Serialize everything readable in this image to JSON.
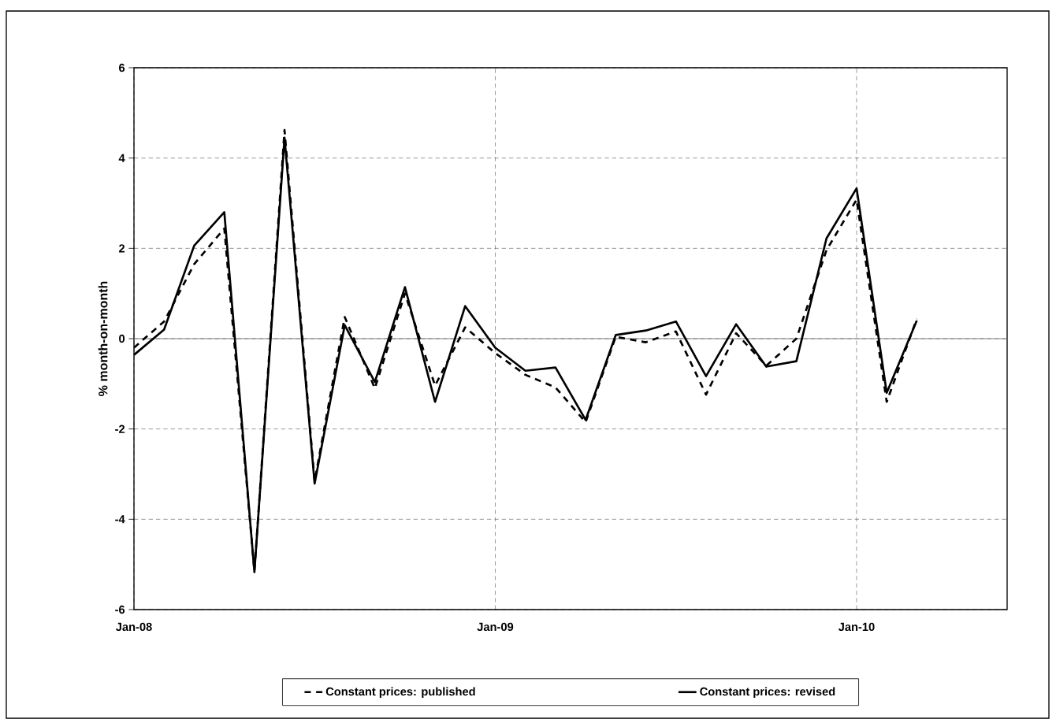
{
  "chart_data": {
    "type": "line",
    "ylabel": "% month-on-month",
    "x": [
      "2008-01",
      "2008-02",
      "2008-03",
      "2008-04",
      "2008-05",
      "2008-06",
      "2008-07",
      "2008-08",
      "2008-09",
      "2008-10",
      "2008-11",
      "2008-12",
      "2009-01",
      "2009-02",
      "2009-03",
      "2009-04",
      "2009-05",
      "2009-06",
      "2009-07",
      "2009-08",
      "2009-09",
      "2009-10",
      "2009-11",
      "2009-12",
      "2010-01",
      "2010-02",
      "2010-03"
    ],
    "series": [
      {
        "name": "Constant prices: published",
        "color": "#000000",
        "line_style": "dashed",
        "values": [
          -0.2,
          0.38,
          1.65,
          2.44,
          -5.15,
          4.62,
          -3.15,
          0.48,
          -1.1,
          1.0,
          -1.04,
          0.25,
          -0.32,
          -0.8,
          -1.08,
          -1.85,
          0.04,
          -0.08,
          0.16,
          -1.24,
          0.12,
          -0.6,
          0.0,
          1.96,
          3.08,
          -1.4,
          0.44
        ]
      },
      {
        "name": "Constant prices: revised",
        "color": "#000000",
        "line_style": "solid",
        "values": [
          -0.36,
          0.2,
          2.06,
          2.8,
          -5.17,
          4.45,
          -3.21,
          0.3,
          -0.96,
          1.14,
          -1.4,
          0.72,
          -0.2,
          -0.71,
          -0.64,
          -1.8,
          0.08,
          0.18,
          0.38,
          -0.83,
          0.32,
          -0.62,
          -0.5,
          2.22,
          3.33,
          -1.2,
          0.4
        ]
      }
    ],
    "xlim": [
      "2008-01",
      "2010-06"
    ],
    "xticks": [
      {
        "value": "2008-01",
        "label": "Jan-08"
      },
      {
        "value": "2009-01",
        "label": "Jan-09"
      },
      {
        "value": "2010-01",
        "label": "Jan-10"
      }
    ],
    "ylim": [
      -6,
      6
    ],
    "yticks": [
      -6,
      -4,
      -2,
      0,
      2,
      4,
      6
    ],
    "ref_lines": [
      {
        "axis": "y",
        "value": 0,
        "color": "#808080"
      }
    ],
    "grid": true,
    "legend": "bottom",
    "marker": "none"
  }
}
